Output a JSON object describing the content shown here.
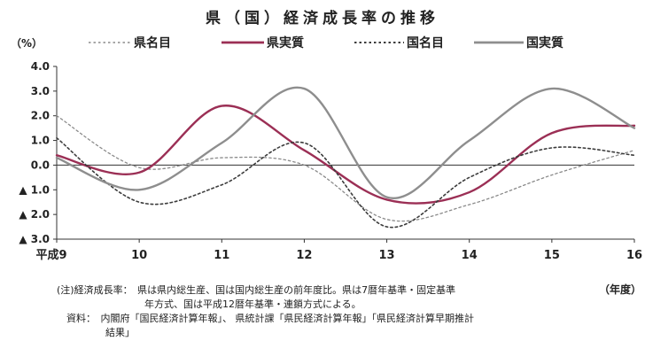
{
  "chart_data": {
    "type": "line",
    "title": "県（国）経済成長率の推移",
    "ylabel": "（%）",
    "xlabel": "（年度）",
    "categories": [
      "平成9",
      "10",
      "11",
      "12",
      "13",
      "14",
      "15",
      "16"
    ],
    "x": [
      9,
      10,
      11,
      12,
      13,
      14,
      15,
      16
    ],
    "ylim": [
      -3.0,
      4.0
    ],
    "yticks": [
      {
        "value": 4.0,
        "label": "4.0"
      },
      {
        "value": 3.0,
        "label": "3.0"
      },
      {
        "value": 2.0,
        "label": "2.0"
      },
      {
        "value": 1.0,
        "label": "1.0"
      },
      {
        "value": 0.0,
        "label": "0.0"
      },
      {
        "value": -1.0,
        "label": "▲ 1.0"
      },
      {
        "value": -2.0,
        "label": "▲ 2.0"
      },
      {
        "value": -3.0,
        "label": "▲ 3.0"
      }
    ],
    "grid": false,
    "legend_position": "top",
    "series": [
      {
        "name": "県名目",
        "color": "#8a8a8a",
        "dash": "dotted",
        "values": [
          2.0,
          -0.1,
          0.3,
          0.0,
          -2.2,
          -1.6,
          -0.4,
          0.6
        ]
      },
      {
        "name": "県実質",
        "color": "#9b2f55",
        "dash": "solid",
        "values": [
          0.4,
          -0.3,
          2.4,
          0.6,
          -1.4,
          -1.1,
          1.3,
          1.6
        ]
      },
      {
        "name": "国名目",
        "color": "#3c3c3c",
        "dash": "dotted",
        "values": [
          1.1,
          -1.5,
          -0.8,
          0.9,
          -2.5,
          -0.5,
          0.7,
          0.4
        ]
      },
      {
        "name": "国実質",
        "color": "#8e8e8e",
        "dash": "solid",
        "values": [
          0.3,
          -1.0,
          0.9,
          3.1,
          -1.3,
          1.0,
          3.1,
          1.5
        ]
      }
    ]
  },
  "notes": [
    "(注)経済成長率：　県は県内総生産、国は国内総生産の前年度比。県は7暦年基準・固定基準",
    "　　　　　　　　　年方式、国は平成12暦年基準・連鎖方式による。",
    "　資料：　内閣府「国民経済計算年報」、 県統計課「県民経済計算年報」「県民経済計算早期推計",
    "　　　　　結果」"
  ]
}
